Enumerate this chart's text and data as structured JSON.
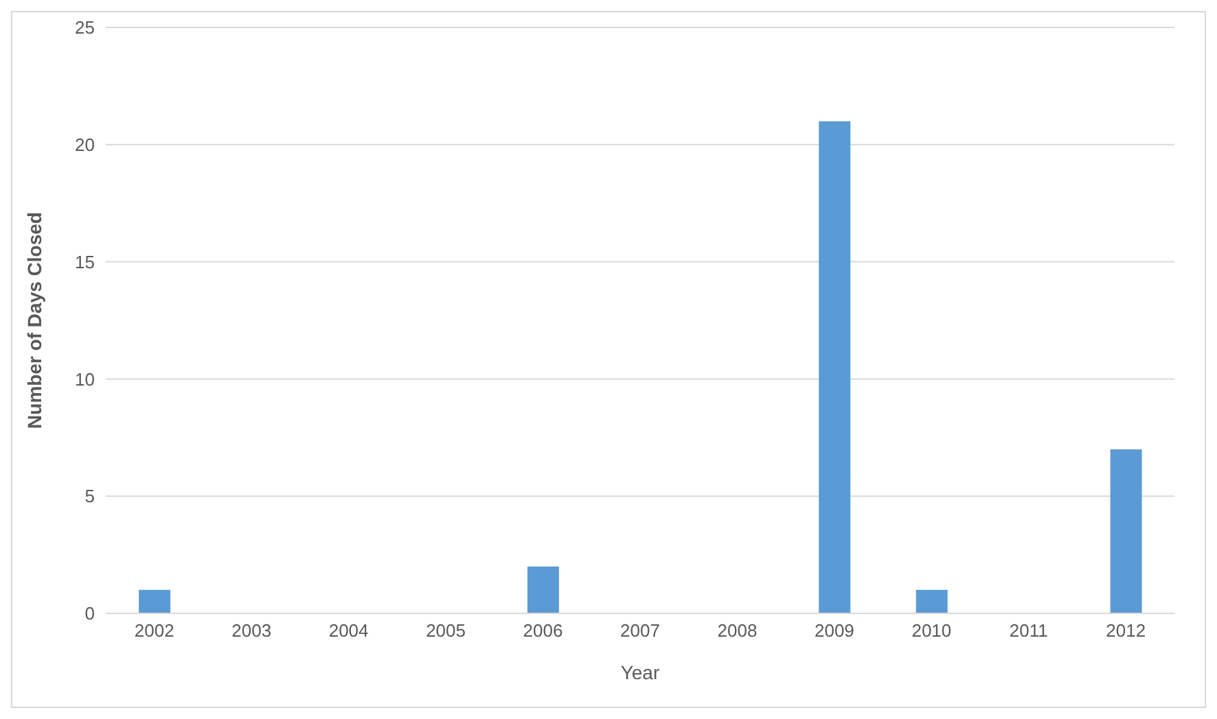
{
  "chart_data": {
    "type": "bar",
    "xlabel": "Year",
    "ylabel": "Number of Days Closed",
    "categories": [
      "2002",
      "2003",
      "2004",
      "2005",
      "2006",
      "2007",
      "2008",
      "2009",
      "2010",
      "2011",
      "2012"
    ],
    "values": [
      1,
      0,
      0,
      0,
      2,
      0,
      0,
      21,
      1,
      0,
      7
    ],
    "color": "#5b9bd5",
    "ylim": [
      0,
      25
    ],
    "yticks": [
      0,
      5,
      10,
      15,
      20,
      25
    ],
    "grid": "y"
  }
}
